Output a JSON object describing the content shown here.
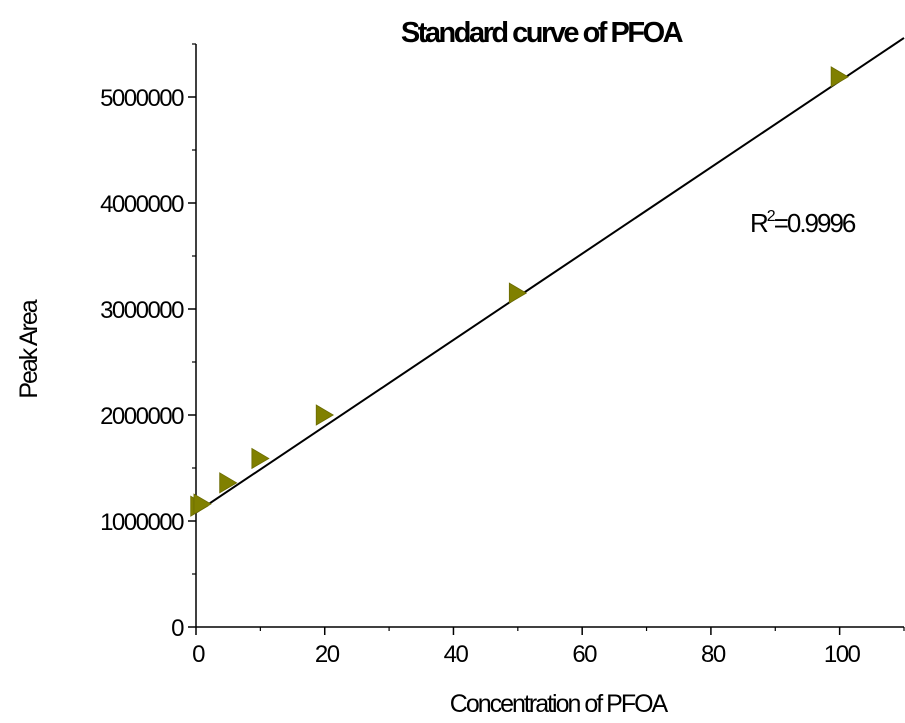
{
  "chart_data": {
    "type": "scatter",
    "title": "Standard curve of PFOA",
    "xlabel": "Concentration of PFOA",
    "ylabel": "Peak Area",
    "xlim": [
      0,
      110
    ],
    "ylim": [
      0,
      5500000
    ],
    "x_ticks": [
      0,
      20,
      40,
      60,
      80,
      100
    ],
    "x_tick_labels": [
      "0",
      "20",
      "40",
      "60",
      "80",
      "100"
    ],
    "y_ticks": [
      0,
      1000000,
      2000000,
      3000000,
      4000000,
      5000000
    ],
    "y_tick_labels": [
      "0",
      "1000000",
      "2000000",
      "3000000",
      "4000000",
      "5000000"
    ],
    "grid": false,
    "series": [
      {
        "marker": "right-triangle",
        "color": "#808000",
        "x": [
          0.5,
          1,
          5,
          10,
          20,
          50,
          100
        ],
        "y": [
          1140000,
          1160000,
          1360000,
          1590000,
          2000000,
          3150000,
          5190000
        ]
      }
    ],
    "fit_line": {
      "color": "#000000",
      "slope": 40700,
      "intercept": 1080000,
      "x_range": [
        0,
        110
      ]
    },
    "annotation": {
      "text_base": "R",
      "text_sup": "2",
      "text_rest": "=0.9996"
    }
  }
}
